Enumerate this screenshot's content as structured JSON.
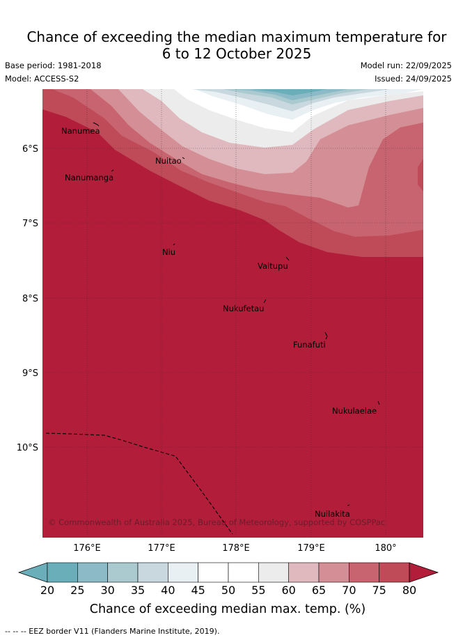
{
  "title": {
    "line1": "Chance of exceeding the median maximum temperature for",
    "line2": "6 to 12 October 2025"
  },
  "meta": {
    "base_period": "Base period: 1981-2018",
    "model": "Model: ACCESS-S2",
    "model_run": "Model run: 22/09/2025",
    "issued": "Issued: 24/09/2025"
  },
  "map": {
    "lat_labels": [
      "6°S",
      "7°S",
      "8°S",
      "9°S",
      "10°S"
    ],
    "lon_labels": [
      "176°E",
      "177°E",
      "178°E",
      "179°E",
      "180°"
    ],
    "places": [
      {
        "name": "Nanumea"
      },
      {
        "name": "Nuitao"
      },
      {
        "name": "Nanumanga"
      },
      {
        "name": "Niu"
      },
      {
        "name": "Vaitupu"
      },
      {
        "name": "Nukufetau"
      },
      {
        "name": "Funafuti"
      },
      {
        "name": "Nukulaelae"
      },
      {
        "name": "Nuilakita"
      }
    ],
    "copyright": "© Commonwealth of Australia 2025, Bureau of Meteorology, supported by COSPPac"
  },
  "colorbar": {
    "ticks": [
      "20",
      "25",
      "30",
      "35",
      "40",
      "45",
      "50",
      "55",
      "60",
      "65",
      "70",
      "75",
      "80"
    ],
    "colors": [
      "#6aaeba",
      "#8cbac6",
      "#aacaCf",
      "#c9d8de",
      "#e9f0f3",
      "#ffffff",
      "#ffffff",
      "#ececec",
      "#e0b9be",
      "#d48e96",
      "#c8646f",
      "#bf4a58",
      "#b21e3a"
    ],
    "label": "Chance of exceeding median max. temp. (%)"
  },
  "footer": "--  --  -- EEZ border V11 (Flanders Marine Institute, 2019)."
}
